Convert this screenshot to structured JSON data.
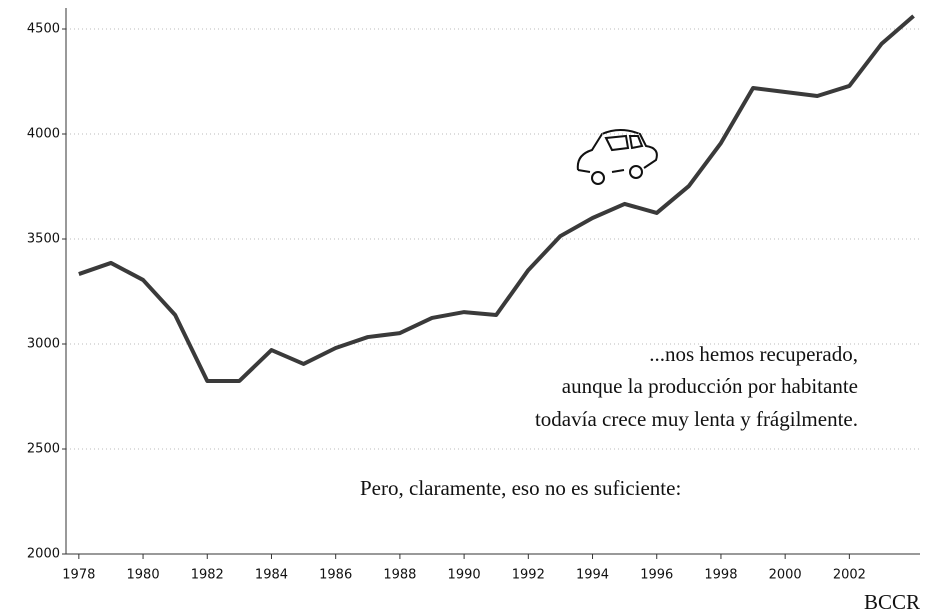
{
  "chart_data": {
    "type": "line",
    "x": [
      1978,
      1979,
      1980,
      1981,
      1982,
      1983,
      1984,
      1985,
      1986,
      1987,
      1988,
      1989,
      1990,
      1991,
      1992,
      1993,
      1994,
      1995,
      1996,
      1997,
      1998,
      1999,
      2000,
      2001,
      2002,
      2003,
      2004
    ],
    "series": [
      {
        "color": "#3a3a3a",
        "values": [
          3333,
          3386,
          3305,
          3138,
          2824,
          2824,
          2971,
          2905,
          2981,
          3033,
          3052,
          3124,
          3152,
          3138,
          3352,
          3514,
          3600,
          3667,
          3624,
          3752,
          3957,
          4219,
          4200,
          4181,
          4229,
          4429,
          4562
        ]
      }
    ],
    "xlim": [
      1977.6,
      2004.2
    ],
    "xticks": [
      1978,
      1980,
      1982,
      1984,
      1986,
      1988,
      1990,
      1992,
      1994,
      1996,
      1998,
      2000,
      2002
    ],
    "ylim": [
      2000,
      4600
    ],
    "yticks": [
      2000,
      2500,
      3000,
      3500,
      4000,
      4500
    ],
    "grid": true,
    "annotations": [
      "...nos hemos recuperado,",
      "aunque la producción por habitante",
      "todavía crece muy lenta y frágilmente.",
      "Pero, claramente, eso no es suficiente:"
    ],
    "source": "BCCR"
  }
}
